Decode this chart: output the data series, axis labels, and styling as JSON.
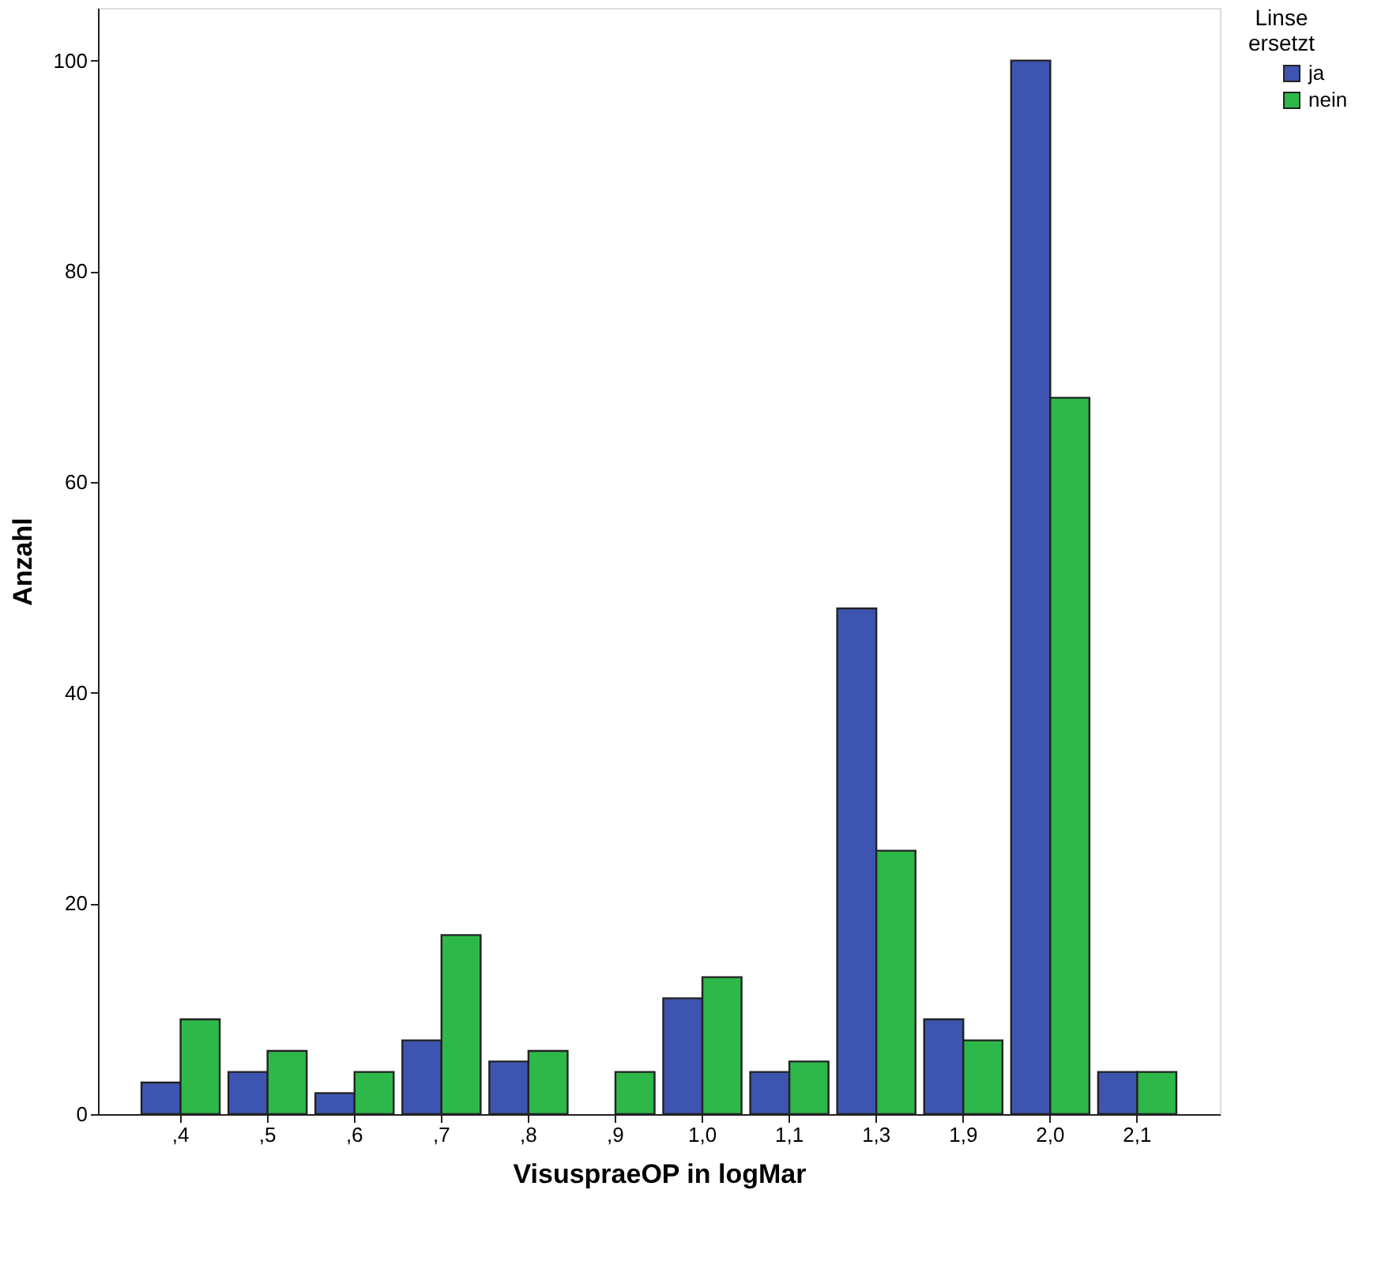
{
  "chart_data": {
    "type": "bar",
    "xlabel": "VisuspraeOP in logMar",
    "ylabel": "Anzahl",
    "legend_title": "Linse ersetzt",
    "categories": [
      ",4",
      ",5",
      ",6",
      ",7",
      ",8",
      ",9",
      "1,0",
      "1,1",
      "1,3",
      "1,9",
      "2,0",
      "2,1"
    ],
    "series": [
      {
        "name": "ja",
        "color": "#3d55b0",
        "values": [
          3,
          4,
          2,
          7,
          5,
          null,
          11,
          4,
          48,
          9,
          100,
          4
        ]
      },
      {
        "name": "nein",
        "color": "#2eb84a",
        "values": [
          9,
          6,
          4,
          17,
          6,
          4,
          13,
          5,
          25,
          7,
          68,
          4
        ]
      }
    ],
    "ylim": [
      0,
      105
    ],
    "yticks": [
      0,
      20,
      40,
      60,
      80,
      100
    ],
    "grid": false,
    "legend": "top right"
  }
}
